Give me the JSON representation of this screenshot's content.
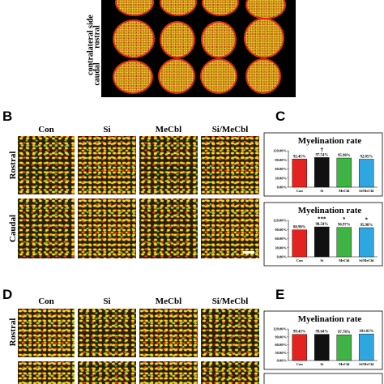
{
  "panels": {
    "A": {
      "side_label": "contralateral side",
      "rows": [
        "rostral",
        "caudal"
      ]
    },
    "B": {
      "letter": "B",
      "columns": [
        "Con",
        "Si",
        "MeCbl",
        "Si/MeCbl"
      ],
      "rows": [
        "Rostral",
        "Caudal"
      ]
    },
    "C": {
      "letter": "C"
    },
    "D": {
      "letter": "D",
      "columns": [
        "Con",
        "Si",
        "MeCbl",
        "Si/MeCbl"
      ],
      "rows": [
        "Rostral"
      ]
    },
    "E": {
      "letter": "E"
    }
  },
  "chart_data": [
    {
      "type": "bar",
      "title": "Myelination rate",
      "categories": [
        "Con",
        "Si",
        "MeCbl",
        "Si/MeCbl"
      ],
      "values": [
        92.45,
        97.54,
        95.98,
        92.05
      ],
      "value_labels": [
        "92.45%",
        "97.54%",
        "95.98%",
        "92.05%"
      ],
      "significance": [
        null,
        "†",
        null,
        null
      ],
      "colors": [
        "#e3231f",
        "#111111",
        "#3fb344",
        "#2ea7e0"
      ],
      "ylim": [
        0,
        120
      ],
      "yticks": [
        {
          "value": 0,
          "label": "0.00%"
        },
        {
          "value": 30,
          "label": "30.00%"
        },
        {
          "value": 60,
          "label": "60.00%"
        },
        {
          "value": 90,
          "label": "90.00%"
        },
        {
          "value": 120,
          "label": "120.00%"
        }
      ]
    },
    {
      "type": "bar",
      "title": "Myelination rate",
      "categories": [
        "Con",
        "Si",
        "MeCbl",
        "Si/MeCbl"
      ],
      "values": [
        88.9,
        98.54,
        96.97,
        95.98
      ],
      "value_labels": [
        "88.90%",
        "98.54%",
        "96.97%",
        "95.98%"
      ],
      "significance": [
        null,
        "***",
        "*",
        "*"
      ],
      "colors": [
        "#e3231f",
        "#111111",
        "#3fb344",
        "#2ea7e0"
      ],
      "ylim": [
        0,
        120
      ],
      "yticks": [
        {
          "value": 0,
          "label": "0.00%"
        },
        {
          "value": 30,
          "label": "30.00%"
        },
        {
          "value": 60,
          "label": "60.00%"
        },
        {
          "value": 90,
          "label": "90.00%"
        },
        {
          "value": 120,
          "label": "120.00%"
        }
      ]
    },
    {
      "type": "bar",
      "title": "Myelination rate",
      "categories": [
        "Con",
        "Si",
        "MeCbl",
        "Si/MeCbl"
      ],
      "values": [
        99.43,
        99.64,
        97.78,
        101.01
      ],
      "value_labels": [
        "99.43%",
        "99.64%",
        "97.78%",
        "101.01%"
      ],
      "colors": [
        "#e3231f",
        "#111111",
        "#3fb344",
        "#2ea7e0"
      ],
      "ylim": [
        0,
        120
      ],
      "yticks": [
        {
          "value": 0,
          "label": "0.00%"
        },
        {
          "value": 30,
          "label": "30.00%"
        },
        {
          "value": 60,
          "label": "60.00%"
        },
        {
          "value": 90,
          "label": "90.00%"
        },
        {
          "value": 120,
          "label": "120.00%"
        }
      ]
    }
  ]
}
